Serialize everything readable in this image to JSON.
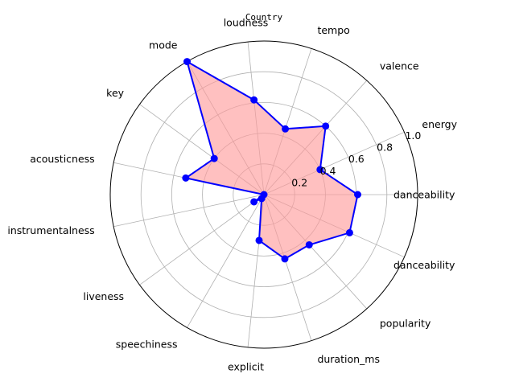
{
  "chart_data": {
    "type": "radar",
    "title": "Country",
    "categories": [
      "danceability",
      "energy",
      "valence",
      "tempo",
      "loudness",
      "mode",
      "key",
      "acousticness",
      "instrumentalness",
      "liveness",
      "speechiness",
      "explicit",
      "duration_ms",
      "popularity",
      "danceability"
    ],
    "series": [
      {
        "values": [
          0.61,
          0.4,
          0.6,
          0.45,
          0.62,
          1.0,
          0.4,
          0.52,
          0.0,
          0.08,
          0.03,
          0.3,
          0.44,
          0.44,
          0.61
        ]
      }
    ],
    "rlim": [
      0,
      1.0
    ],
    "rticks": [
      "0.2",
      "0.4",
      "0.6",
      "0.8",
      "1.0"
    ],
    "grid": true,
    "colors": {
      "line": "#0000ff",
      "fill": "#ff9999",
      "grid": "#b0b0b0",
      "frame": "#000000"
    }
  }
}
